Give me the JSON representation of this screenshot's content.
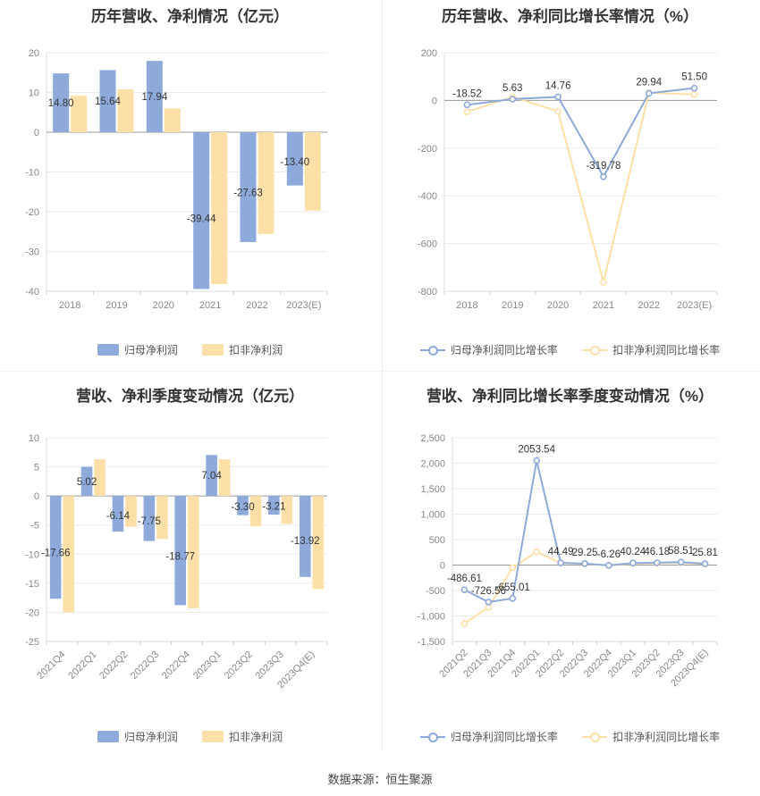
{
  "colors": {
    "blue": "#8eaadb",
    "yellow": "#fde0a7",
    "axis": "#999999",
    "grid": "#ebebeb"
  },
  "source": "数据来源：恒生聚源",
  "chart_data": [
    {
      "type": "bar",
      "title": "历年营收、净利情况（亿元）",
      "categories": [
        "2018",
        "2019",
        "2020",
        "2021",
        "2022",
        "2023(E)"
      ],
      "series": [
        {
          "name": "归母净利润",
          "values": [
            14.8,
            15.64,
            17.94,
            -39.44,
            -27.63,
            -13.4
          ],
          "labels": [
            "14.80",
            "15.64",
            "17.94",
            "-39.44",
            "-27.63",
            "-13.40"
          ]
        },
        {
          "name": "扣非净利润",
          "values": [
            9.2,
            10.8,
            6.0,
            -38.2,
            -25.6,
            -19.7
          ]
        }
      ],
      "ylim": [
        -40,
        20
      ],
      "yticks": [
        20,
        10,
        0,
        -10,
        -20,
        -30,
        -40
      ],
      "ytick_labels": [
        "20",
        "10",
        "0",
        "-10",
        "-20",
        "-30",
        "-40"
      ],
      "xtick_rotate": false,
      "grid": true,
      "legend": "bottom"
    },
    {
      "type": "line",
      "title": "历年营收、净利同比增长率情况（%）",
      "categories": [
        "2018",
        "2019",
        "2020",
        "2021",
        "2022",
        "2023(E)"
      ],
      "series": [
        {
          "name": "归母净利润同比增长率",
          "values": [
            -18.52,
            5.63,
            14.76,
            -319.78,
            29.94,
            51.5
          ],
          "labels": [
            "-18.52",
            "5.63",
            "14.76",
            "-319.78",
            "29.94",
            "51.50"
          ]
        },
        {
          "name": "扣非净利润同比增长率",
          "values": [
            -48,
            15,
            -46,
            -762,
            32,
            25
          ]
        }
      ],
      "ylim": [
        -800,
        200
      ],
      "yticks": [
        200,
        0,
        -200,
        -400,
        -600,
        -800
      ],
      "ytick_labels": [
        "200",
        "0",
        "-200",
        "-400",
        "-600",
        "-800"
      ],
      "xtick_rotate": false,
      "grid": true,
      "legend": "bottom"
    },
    {
      "type": "bar",
      "title": "营收、净利季度变动情况（亿元）",
      "categories": [
        "2021Q4",
        "2022Q1",
        "2022Q2",
        "2022Q3",
        "2022Q4",
        "2023Q1",
        "2023Q2",
        "2023Q3",
        "2023Q4(E)"
      ],
      "series": [
        {
          "name": "归母净利润",
          "values": [
            -17.66,
            5.02,
            -6.14,
            -7.75,
            -18.77,
            7.04,
            -3.3,
            -3.21,
            -13.92
          ],
          "labels": [
            "-17.66",
            "5.02",
            "-6.14",
            "-7.75",
            "-18.77",
            "7.04",
            "-3.30",
            "-3.21",
            "-13.92"
          ]
        },
        {
          "name": "扣非净利润",
          "values": [
            -20.0,
            6.3,
            -5.3,
            -7.4,
            -19.3,
            6.3,
            -5.2,
            -4.8,
            -16.0
          ]
        }
      ],
      "ylim": [
        -25,
        10
      ],
      "yticks": [
        10,
        5,
        0,
        -5,
        -10,
        -15,
        -20,
        -25
      ],
      "ytick_labels": [
        "10",
        "5",
        "0",
        "-5",
        "-10",
        "-15",
        "-20",
        "-25"
      ],
      "xtick_rotate": true,
      "grid": true,
      "legend": "bottom"
    },
    {
      "type": "line",
      "title": "营收、净利同比增长率季度变动情况（%）",
      "categories": [
        "2021Q2",
        "2021Q3",
        "2021Q4",
        "2022Q1",
        "2022Q2",
        "2022Q3",
        "2022Q4",
        "2023Q1",
        "2023Q2",
        "2023Q3",
        "2023Q4(E)"
      ],
      "series": [
        {
          "name": "归母净利润同比增长率",
          "values": [
            -486.61,
            -726.56,
            -655.01,
            2053.54,
            44.49,
            29.25,
            -6.26,
            40.24,
            46.18,
            58.51,
            25.81
          ],
          "labels": [
            "-486.61",
            "-726.56",
            "-655.01",
            "2053.54",
            "44.49",
            "29.25",
            "-6.26",
            "40.24",
            "46.18",
            "58.51",
            "25.81"
          ]
        },
        {
          "name": "扣非净利润同比增长率",
          "values": [
            -1150,
            -830,
            -50,
            260,
            40,
            25,
            -10,
            30,
            35,
            45,
            20
          ]
        }
      ],
      "ylim": [
        -1500,
        2500
      ],
      "yticks": [
        2500,
        2000,
        1500,
        1000,
        500,
        0,
        -500,
        -1000,
        -1500
      ],
      "ytick_labels": [
        "2,500",
        "2,000",
        "1,500",
        "1,000",
        "500",
        "0",
        "-500",
        "-1,000",
        "-1,500"
      ],
      "xtick_rotate": true,
      "grid": true,
      "legend": "bottom"
    }
  ]
}
